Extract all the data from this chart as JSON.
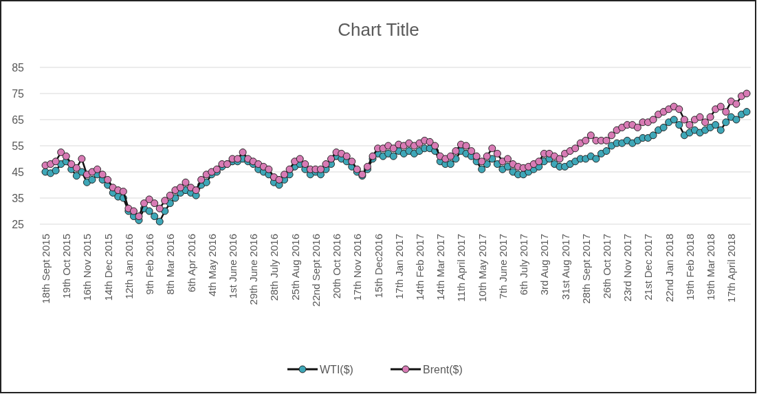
{
  "chart_data": {
    "type": "line",
    "title": "Chart Title",
    "categories": [
      "18th Sept 2015",
      null,
      null,
      null,
      "19th Oct 2015",
      null,
      null,
      null,
      "16th Nov 2015",
      null,
      null,
      null,
      "14th Dec 2015",
      null,
      null,
      null,
      "12th Jan 2016",
      null,
      null,
      null,
      "9th Feb 2016",
      null,
      null,
      null,
      "8th Mar 2016",
      null,
      null,
      null,
      "6th Apr 2016",
      null,
      null,
      null,
      "4th May 2016",
      null,
      null,
      null,
      "1st June 2016",
      null,
      null,
      null,
      "29th June 2016",
      null,
      null,
      null,
      "28th July 2016",
      null,
      null,
      null,
      "25th Aug 2016",
      null,
      null,
      null,
      "22nd Sept 2016",
      null,
      null,
      null,
      "20th Oct 2016",
      null,
      null,
      null,
      "17th Nov 2016",
      null,
      null,
      null,
      "15th Dec2016",
      null,
      null,
      null,
      "17th Jan 2017",
      null,
      null,
      null,
      "14th Feb 2017",
      null,
      null,
      null,
      "14th Mar 2017",
      null,
      null,
      null,
      "11th April 2017",
      null,
      null,
      null,
      "10th May 2017",
      null,
      null,
      null,
      "7th June 2017",
      null,
      null,
      null,
      "6th July 2017",
      null,
      null,
      null,
      "3rd Aug 2017",
      null,
      null,
      null,
      "31st Aug 2017",
      null,
      null,
      null,
      "28th Sept 2017",
      null,
      null,
      null,
      "26th Oct 2017",
      null,
      null,
      null,
      "23rd Nov 2017",
      null,
      null,
      null,
      "21st Dec 2017",
      null,
      null,
      null,
      "22nd Jan 2018",
      null,
      null,
      null,
      "19th Feb 2018",
      null,
      null,
      null,
      "19th Mar 2018",
      null,
      null,
      null,
      "17th April 2018",
      null,
      null,
      null
    ],
    "series": [
      {
        "name": "WTI($)",
        "color": "#3ea7b8",
        "values": [
          45,
          44.5,
          45.5,
          48,
          49,
          46,
          43.5,
          45,
          41,
          42,
          44,
          42,
          40,
          37,
          35.5,
          35,
          30,
          28,
          26.5,
          31,
          30,
          28,
          26,
          30,
          33,
          35,
          37,
          38,
          37,
          36,
          40,
          41,
          44,
          45,
          47,
          48,
          49,
          49,
          50,
          49,
          48,
          46,
          45,
          44,
          41,
          40,
          42,
          44,
          47,
          48,
          46,
          44,
          45,
          44,
          46,
          48,
          51,
          50,
          49,
          47,
          45,
          43.5,
          46,
          50,
          52,
          51,
          52,
          51,
          53,
          52,
          53,
          52,
          53,
          54,
          54,
          53,
          49,
          48,
          48,
          50,
          53,
          52,
          51,
          49,
          46,
          48,
          50,
          48,
          46,
          47,
          45,
          44,
          44,
          45,
          46,
          47,
          49,
          50,
          48,
          47,
          47,
          48,
          49,
          50,
          50,
          51,
          50,
          52,
          53,
          55,
          56,
          56,
          57,
          56,
          57,
          58,
          58,
          59,
          61,
          62,
          64,
          65,
          63,
          59,
          60,
          61,
          60,
          61,
          62,
          63,
          61,
          64,
          66,
          65,
          67,
          68
        ]
      },
      {
        "name": "Brent($)",
        "color": "#d87bb5",
        "values": [
          47.5,
          48,
          49,
          52.5,
          51,
          48,
          46.5,
          50,
          44,
          45,
          46,
          44,
          42,
          39,
          38,
          37.5,
          31,
          30,
          28,
          33,
          34.5,
          33,
          31,
          34,
          36,
          38,
          39,
          41,
          39,
          38,
          42,
          44,
          45,
          46,
          48,
          48,
          50,
          50,
          52.5,
          50,
          49,
          48,
          47,
          46,
          43,
          42,
          44,
          46,
          49,
          50,
          48,
          46,
          46,
          46,
          48,
          50,
          52.5,
          52,
          51,
          49,
          46,
          44,
          47,
          51,
          54,
          54,
          55,
          54,
          55.5,
          55,
          56,
          55,
          56,
          57,
          56.5,
          55,
          51,
          50,
          51,
          53,
          55.5,
          55,
          53,
          51,
          49,
          51,
          54,
          52,
          49,
          50,
          48,
          47,
          46.5,
          47,
          48,
          49,
          52,
          52,
          51,
          50,
          52,
          53,
          54,
          56,
          57,
          59,
          57,
          57,
          57,
          59,
          61,
          62,
          63,
          63,
          62,
          64,
          64,
          65,
          67,
          68,
          69,
          70,
          69,
          65,
          63,
          65,
          66,
          64,
          66,
          69,
          70,
          68,
          72,
          71,
          74,
          75
        ]
      }
    ],
    "ylim": [
      25,
      85
    ],
    "yticks": [
      25,
      35,
      45,
      55,
      65,
      75,
      85
    ],
    "grid": "y",
    "legend": "bottom",
    "marker": "circle",
    "line_style": "solid"
  }
}
